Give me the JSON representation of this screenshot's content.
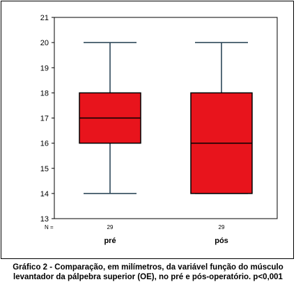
{
  "chart_data": {
    "type": "boxplot",
    "categories": [
      "pré",
      "pós"
    ],
    "boxes": [
      {
        "category": "pré",
        "n": "29",
        "whisker_low": 14,
        "q1": 16,
        "median": 17,
        "q3": 18,
        "whisker_high": 20
      },
      {
        "category": "pós",
        "n": "29",
        "whisker_low": 14,
        "q1": 14,
        "median": 16,
        "q3": 18,
        "whisker_high": 20
      }
    ],
    "ylim": [
      13,
      21
    ],
    "yticks": [
      13,
      14,
      15,
      16,
      17,
      18,
      19,
      20,
      21
    ],
    "n_label": "N =",
    "box_color": "#e8141c",
    "line_color": "#1f3b4d",
    "grid": false
  },
  "caption": {
    "line1": "Gráfico 2 - Comparação, em milímetros, da variável função do músculo",
    "line2": "levantador da pálpebra superior (OE), no pré e pós-operatório. p<0,001"
  }
}
